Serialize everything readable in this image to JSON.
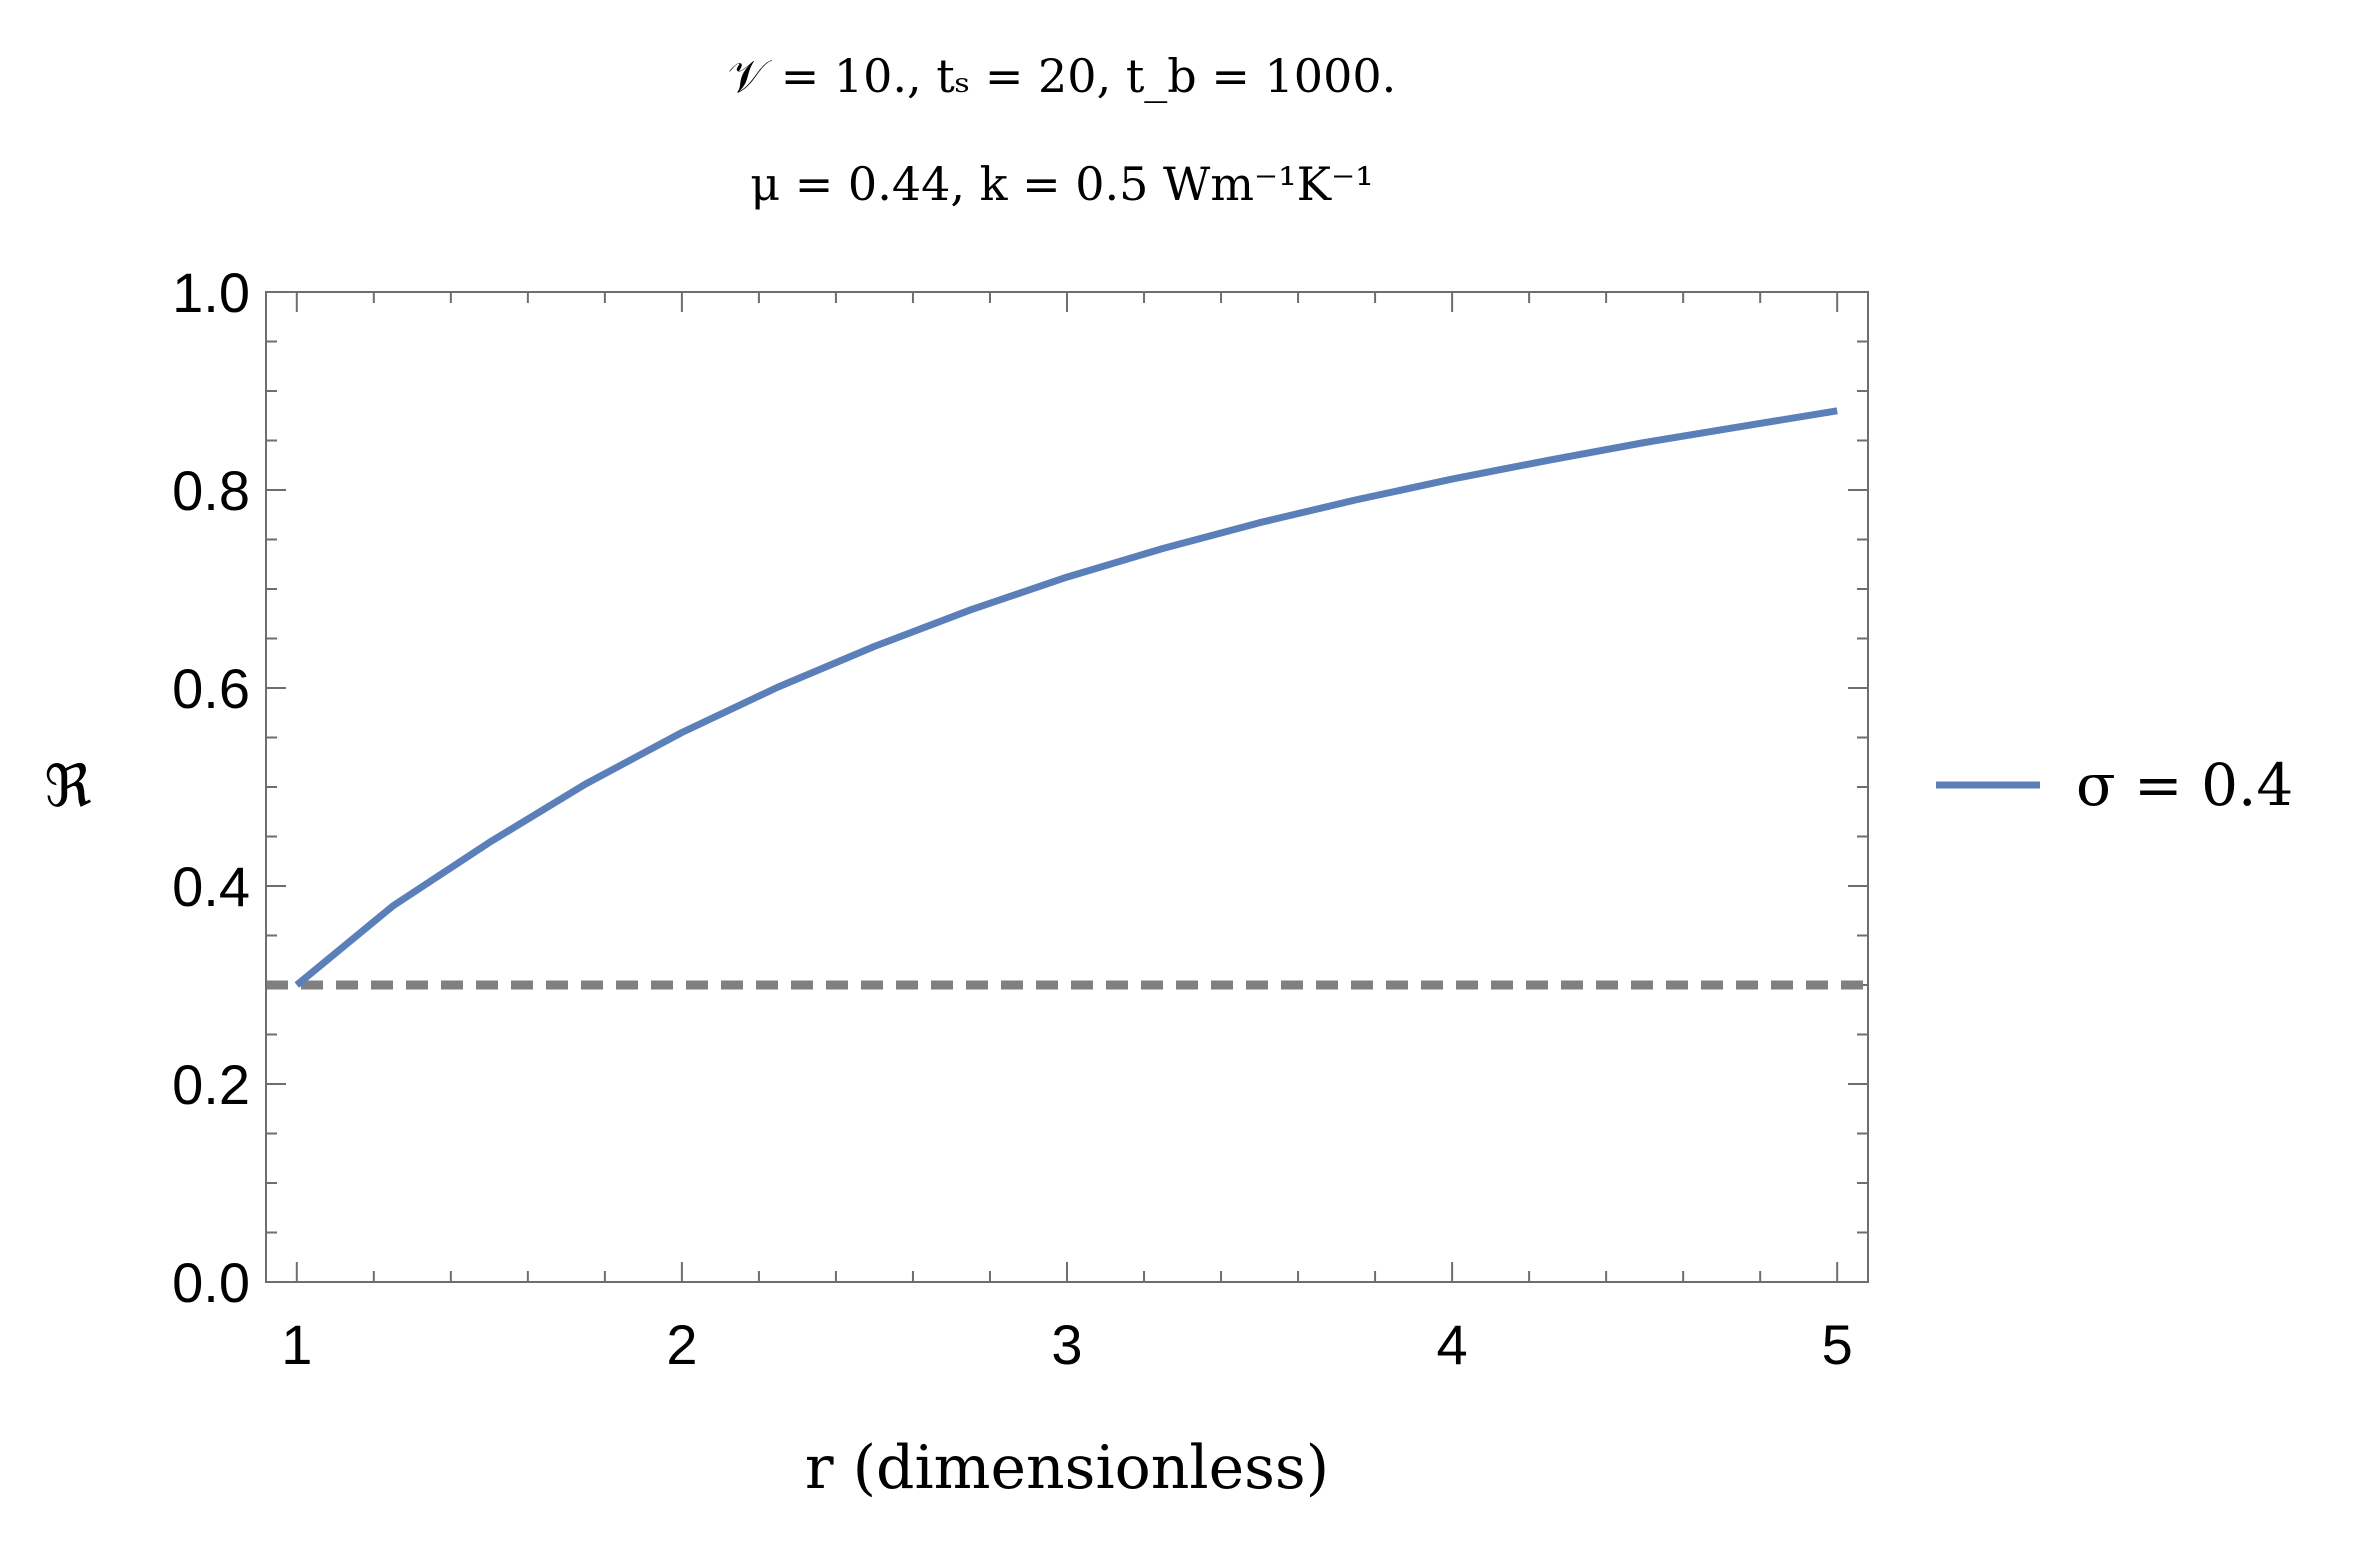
{
  "chart_data": {
    "type": "line",
    "title_lines": [
      "𝒱 = 10.,  tₛ = 20,  t_b = 1000.",
      "μ = 0.44,  k = 0.5 Wm⁻¹K⁻¹"
    ],
    "xlabel": "r (dimensionless)",
    "ylabel": "ℜ",
    "xlim": [
      0.92,
      5.08
    ],
    "ylim": [
      0.0,
      1.0
    ],
    "x_ticks": [
      1,
      2,
      3,
      4,
      5
    ],
    "x_tick_labels": [
      "1",
      "2",
      "3",
      "4",
      "5"
    ],
    "y_ticks": [
      0.0,
      0.2,
      0.4,
      0.6,
      0.8,
      1.0
    ],
    "y_tick_labels": [
      "0.0",
      "0.2",
      "0.4",
      "0.6",
      "0.8",
      "1.0"
    ],
    "grid": false,
    "legend_position": "right",
    "series": [
      {
        "name": "σ = 0.4",
        "color": "#5b7fb8",
        "x": [
          1.0,
          1.25,
          1.5,
          1.75,
          2.0,
          2.25,
          2.5,
          2.75,
          3.0,
          3.25,
          3.5,
          3.75,
          4.0,
          4.25,
          4.5,
          4.75,
          5.0
        ],
        "y": [
          0.3,
          0.38,
          0.444,
          0.503,
          0.555,
          0.601,
          0.642,
          0.679,
          0.712,
          0.741,
          0.767,
          0.79,
          0.811,
          0.83,
          0.848,
          0.864,
          0.88
        ]
      }
    ],
    "reference_lines": [
      {
        "y": 0.3,
        "style": "dashed",
        "color": "#808080"
      }
    ]
  }
}
